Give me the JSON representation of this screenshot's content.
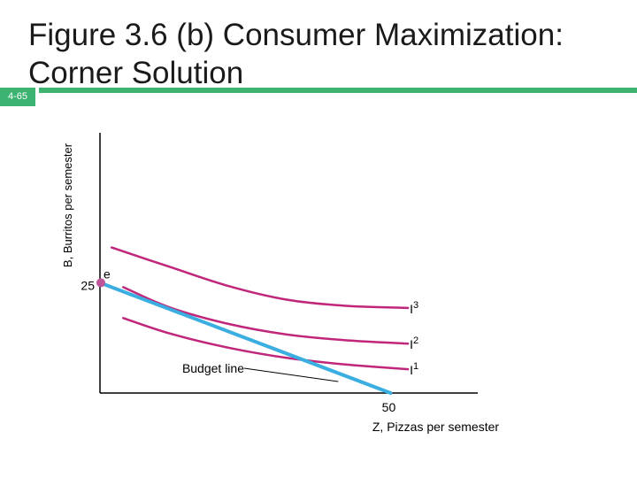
{
  "slide": {
    "title_line1": "Figure 3.6 (b) Consumer Maximization:",
    "title_line2": "Corner Solution",
    "number": "4-65",
    "accent_color": "#3cb371",
    "badge_color": "#3cb371"
  },
  "chart_data": {
    "type": "line",
    "title": "",
    "xlabel": "Z, Pizzas per semester",
    "ylabel": "B, Burritos per semester",
    "x_ticks": [
      {
        "value": 50,
        "label": "50"
      }
    ],
    "y_ticks": [
      {
        "value": 25,
        "label": "25"
      }
    ],
    "xlim": [
      0,
      65
    ],
    "ylim": [
      0,
      59
    ],
    "grid": false,
    "series": [
      {
        "name": "Budget line",
        "color": "#3aaee0",
        "points": [
          [
            0,
            25
          ],
          [
            50,
            0
          ]
        ]
      },
      {
        "name": "I1",
        "color": "#c0267a",
        "points": [
          [
            4,
            17
          ],
          [
            12,
            13.5
          ],
          [
            22,
            10.3
          ],
          [
            32,
            8
          ],
          [
            42,
            6.5
          ],
          [
            53,
            5.4
          ]
        ]
      },
      {
        "name": "I2",
        "color": "#c0267a",
        "points": [
          [
            4,
            24
          ],
          [
            12,
            19.4
          ],
          [
            22,
            15.7
          ],
          [
            32,
            13.3
          ],
          [
            42,
            12
          ],
          [
            53,
            11.2
          ]
        ]
      },
      {
        "name": "I3",
        "color": "#c0267a",
        "points": [
          [
            2,
            33
          ],
          [
            12,
            28.6
          ],
          [
            22,
            24.3
          ],
          [
            32,
            21.2
          ],
          [
            42,
            19.8
          ],
          [
            53,
            19.3
          ]
        ]
      }
    ],
    "point": {
      "label": "e",
      "x": 0,
      "y": 25,
      "color": "#c0569a"
    },
    "curve_labels": [
      {
        "text": "I",
        "sup": "3",
        "series": "I3"
      },
      {
        "text": "I",
        "sup": "2",
        "series": "I2"
      },
      {
        "text": "I",
        "sup": "1",
        "series": "I1"
      }
    ],
    "annotation": {
      "text": "Budget line",
      "points_to": [
        41,
        2.6
      ]
    }
  }
}
